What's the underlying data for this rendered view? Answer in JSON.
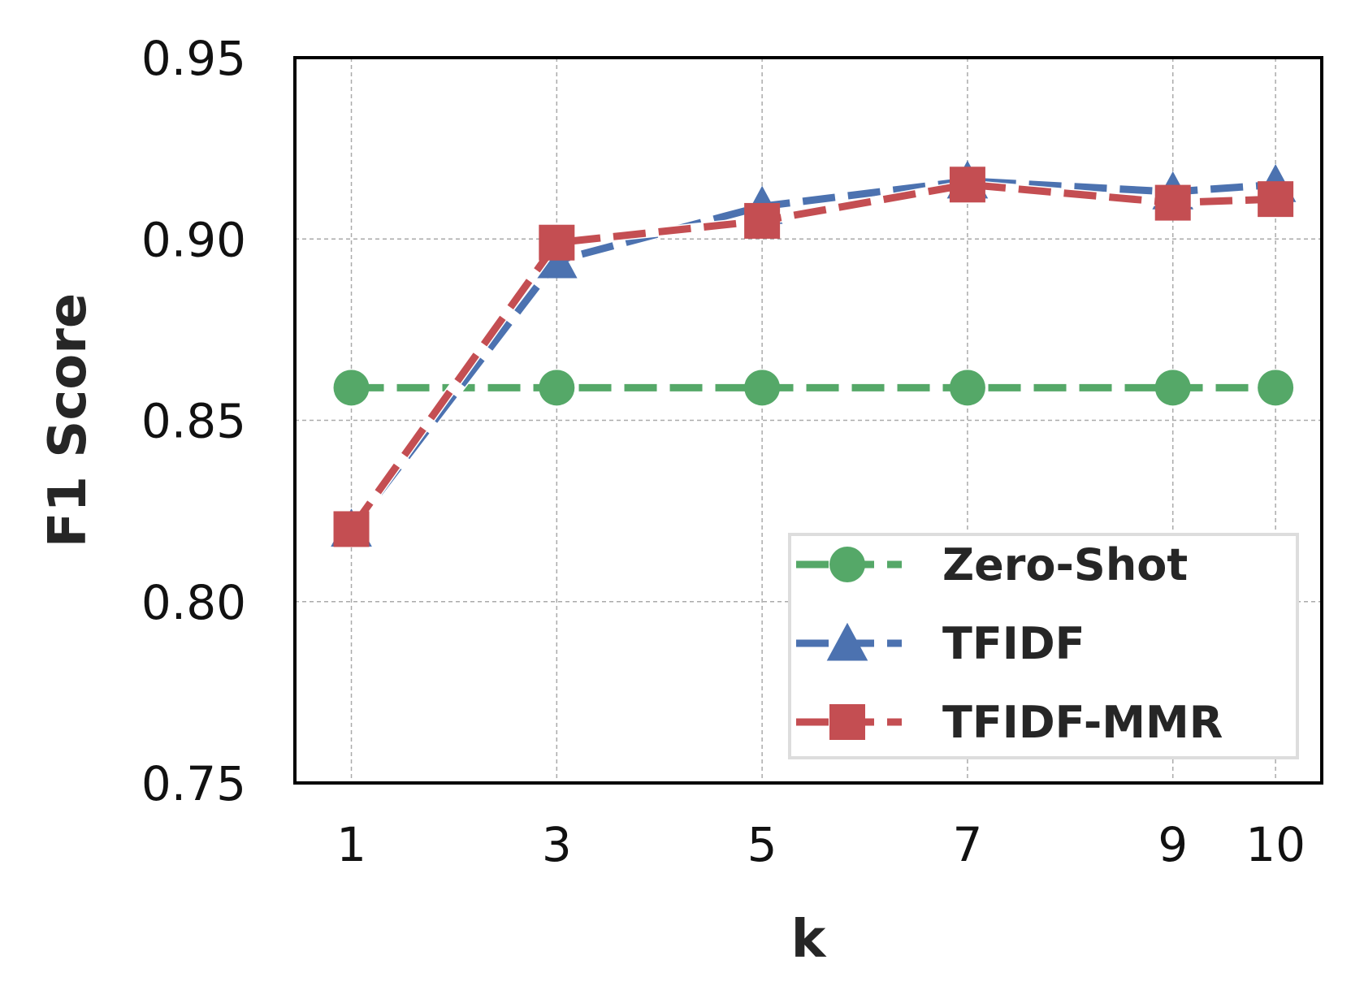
{
  "chart_data": {
    "type": "line",
    "x": [
      1,
      3,
      5,
      7,
      9,
      10
    ],
    "x_ticks": [
      "1",
      "3",
      "5",
      "7",
      "9",
      "10"
    ],
    "y_ticks": [
      "0.75",
      "0.80",
      "0.85",
      "0.90",
      "0.95"
    ],
    "ylim": [
      0.75,
      0.95
    ],
    "xlim": [
      0.45,
      10.45
    ],
    "xlabel": "k",
    "ylabel": "F1 Score",
    "grid": true,
    "legend_position": "bottom-right",
    "series": [
      {
        "name": "Zero-Shot",
        "color": "#55a868",
        "marker": "circle",
        "values": [
          0.859,
          0.859,
          0.859,
          0.859,
          0.859,
          0.859
        ]
      },
      {
        "name": "TFIDF",
        "color": "#4c72b0",
        "marker": "triangle",
        "values": [
          0.82,
          0.894,
          0.909,
          0.916,
          0.913,
          0.915
        ]
      },
      {
        "name": "TFIDF-MMR",
        "color": "#c44e52",
        "marker": "square",
        "values": [
          0.82,
          0.899,
          0.905,
          0.915,
          0.91,
          0.911
        ]
      }
    ]
  }
}
